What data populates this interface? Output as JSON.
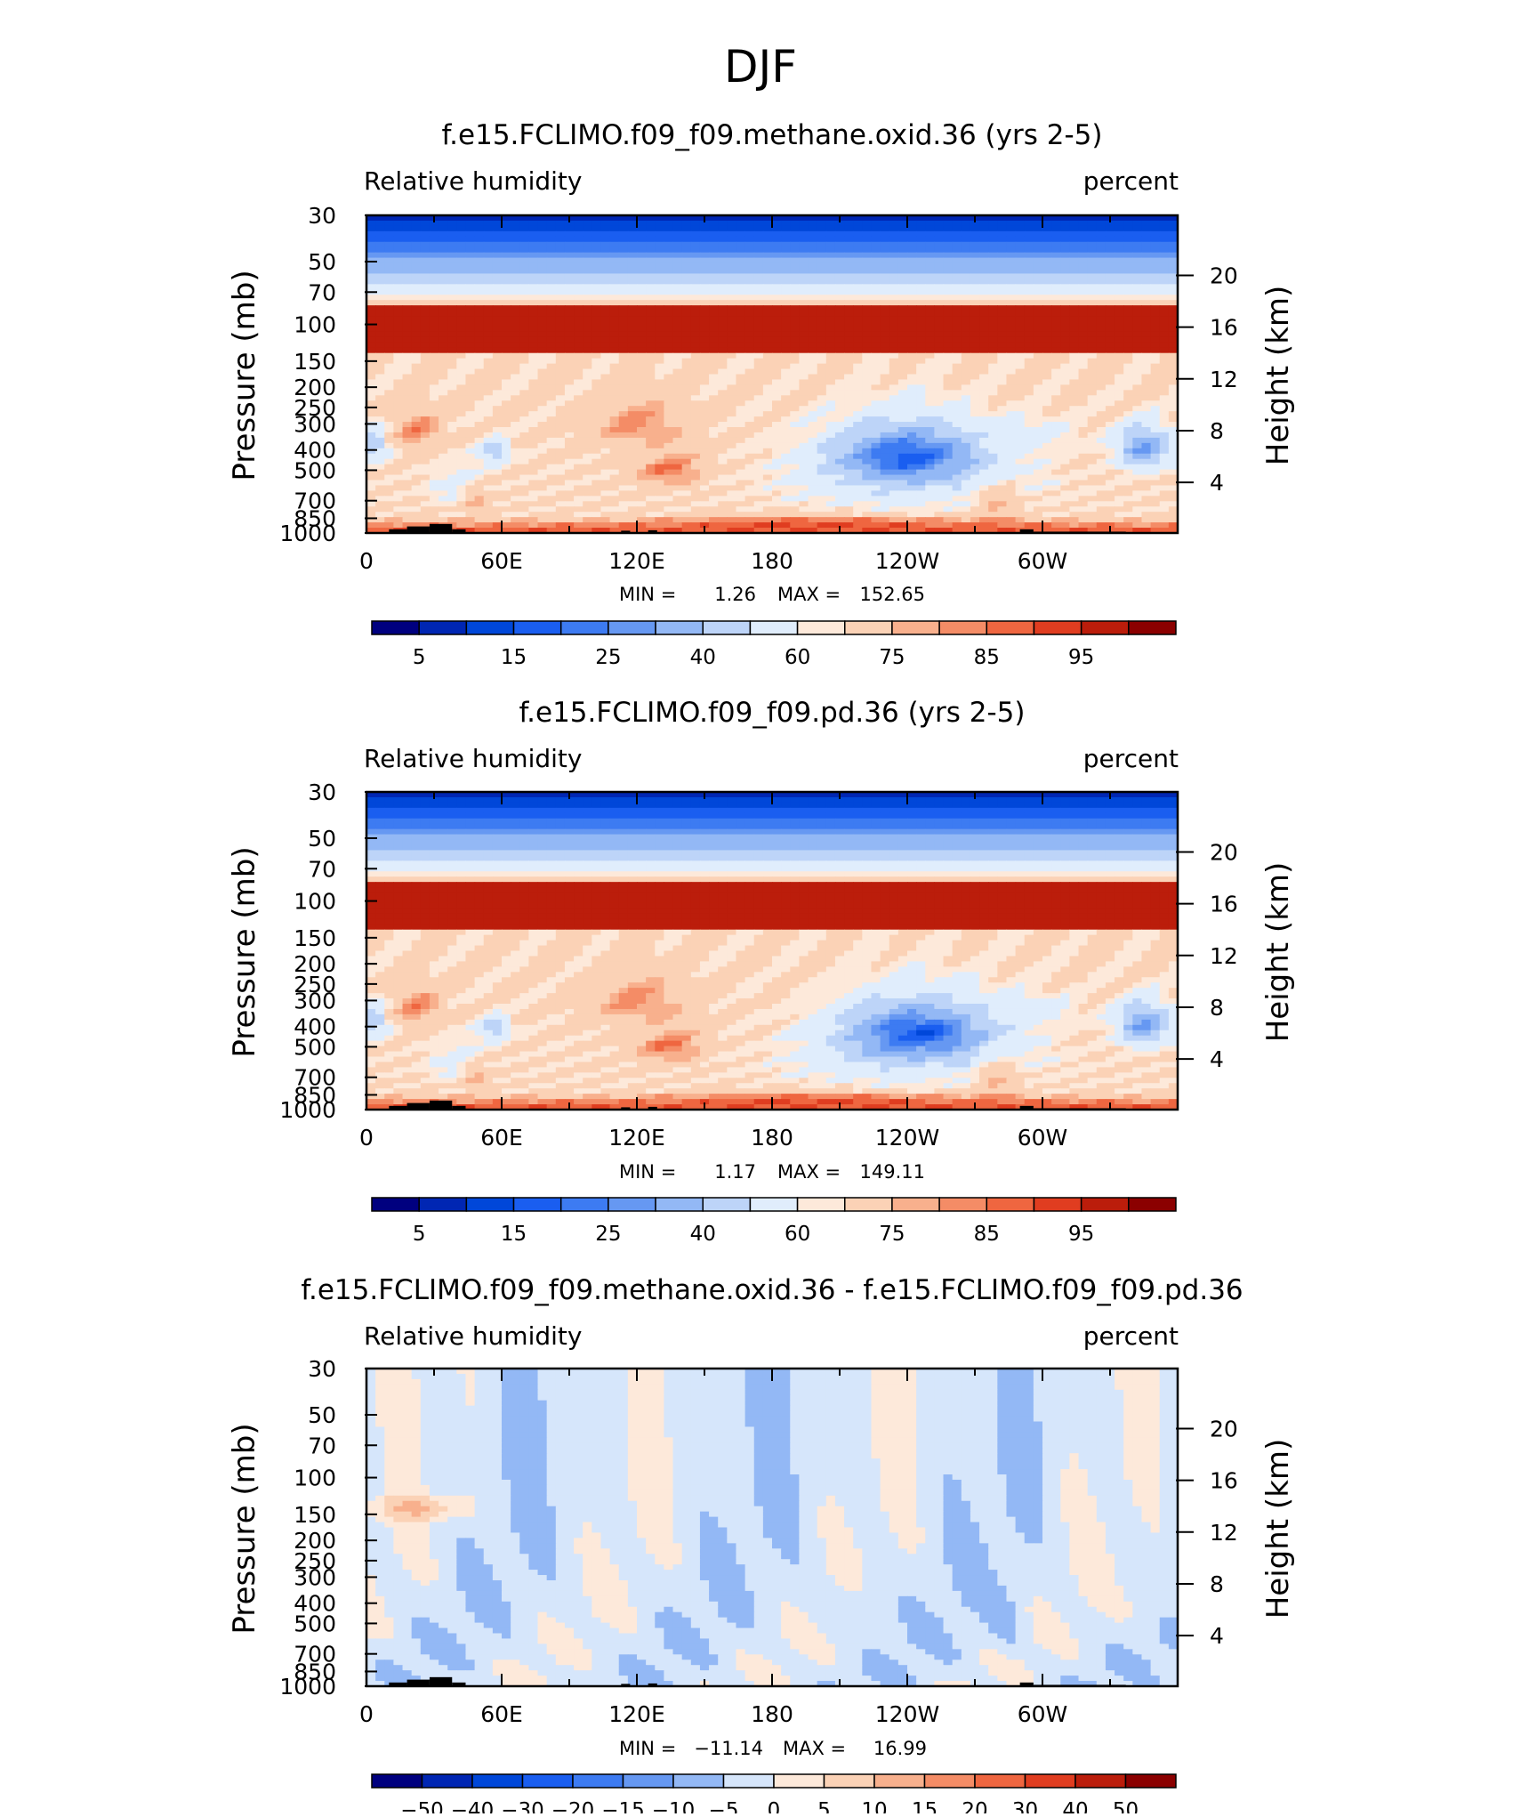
{
  "page_title": "DJF",
  "chart_data": [
    {
      "type": "heatmap",
      "title": "f.e15.FCLIMO.f09_f09.methane.oxid.36 (yrs 2-5)",
      "left_label": "Relative humidity",
      "right_label": "percent",
      "xlabel": "",
      "ylabel": "Pressure (mb)",
      "ylabel_right": "Height (km)",
      "x_ticks": [
        "0",
        "60E",
        "120E",
        "180",
        "120W",
        "60W"
      ],
      "xlim": [
        0,
        360
      ],
      "y_ticks": [
        "30",
        "50",
        "70",
        "100",
        "150",
        "200",
        "250",
        "300",
        "400",
        "500",
        "700",
        "850",
        "1000"
      ],
      "y2_ticks": [
        "20",
        "16",
        "12",
        "8",
        "4"
      ],
      "min_label": "MIN =",
      "min_value": "1.26",
      "max_label": "MAX =",
      "max_value": "152.65",
      "colorbar_labels": [
        "5",
        "15",
        "25",
        "40",
        "60",
        "75",
        "85",
        "95"
      ],
      "levels": [
        5,
        10,
        15,
        20,
        25,
        30,
        40,
        50,
        60,
        65,
        75,
        80,
        85,
        90,
        95
      ],
      "colors": [
        "#00007f",
        "#0026b3",
        "#0047d9",
        "#1a5ef0",
        "#3d7bf2",
        "#6698f2",
        "#93b8f5",
        "#bdd4f8",
        "#e0edfc",
        "#fde9da",
        "#fbd2b6",
        "#f8b08d",
        "#f48c66",
        "#ef6640",
        "#e03d20",
        "#bb1d0b",
        "#8b0000"
      ]
    },
    {
      "type": "heatmap",
      "title": "f.e15.FCLIMO.f09_f09.pd.36 (yrs 2-5)",
      "left_label": "Relative humidity",
      "right_label": "percent",
      "xlabel": "",
      "ylabel": "Pressure (mb)",
      "ylabel_right": "Height (km)",
      "x_ticks": [
        "0",
        "60E",
        "120E",
        "180",
        "120W",
        "60W"
      ],
      "xlim": [
        0,
        360
      ],
      "y_ticks": [
        "30",
        "50",
        "70",
        "100",
        "150",
        "200",
        "250",
        "300",
        "400",
        "500",
        "700",
        "850",
        "1000"
      ],
      "y2_ticks": [
        "20",
        "16",
        "12",
        "8",
        "4"
      ],
      "min_label": "MIN =",
      "min_value": "1.17",
      "max_label": "MAX =",
      "max_value": "149.11",
      "colorbar_labels": [
        "5",
        "15",
        "25",
        "40",
        "60",
        "75",
        "85",
        "95"
      ],
      "levels": [
        5,
        10,
        15,
        20,
        25,
        30,
        40,
        50,
        60,
        65,
        75,
        80,
        85,
        90,
        95
      ],
      "colors": [
        "#00007f",
        "#0026b3",
        "#0047d9",
        "#1a5ef0",
        "#3d7bf2",
        "#6698f2",
        "#93b8f5",
        "#bdd4f8",
        "#e0edfc",
        "#fde9da",
        "#fbd2b6",
        "#f8b08d",
        "#f48c66",
        "#ef6640",
        "#e03d20",
        "#bb1d0b",
        "#8b0000"
      ]
    },
    {
      "type": "heatmap",
      "title": "f.e15.FCLIMO.f09_f09.methane.oxid.36 - f.e15.FCLIMO.f09_f09.pd.36",
      "left_label": "Relative humidity",
      "right_label": "percent",
      "xlabel": "",
      "ylabel": "Pressure (mb)",
      "ylabel_right": "Height (km)",
      "x_ticks": [
        "0",
        "60E",
        "120E",
        "180",
        "120W",
        "60W"
      ],
      "xlim": [
        0,
        360
      ],
      "y_ticks": [
        "30",
        "50",
        "70",
        "100",
        "150",
        "200",
        "250",
        "300",
        "400",
        "500",
        "700",
        "850",
        "1000"
      ],
      "y2_ticks": [
        "20",
        "16",
        "12",
        "8",
        "4"
      ],
      "min_label": "MIN =",
      "min_value": "−11.14",
      "max_label": "MAX =",
      "max_value": "16.99",
      "colorbar_labels": [
        "−50",
        "−40",
        "−30",
        "−20",
        "−15",
        "−10",
        "−5",
        "0",
        "5",
        "10",
        "15",
        "20",
        "30",
        "40",
        "50"
      ],
      "levels": [
        -50,
        -40,
        -30,
        -20,
        -15,
        -10,
        -5,
        0,
        5,
        10,
        15,
        20,
        30,
        40,
        50
      ],
      "colors": [
        "#00007f",
        "#0026b3",
        "#0047d9",
        "#1a5ef0",
        "#3d7bf2",
        "#6698f2",
        "#93b8f5",
        "#d6e6fb",
        "#fde9da",
        "#fbd2b6",
        "#f8b08d",
        "#f48c66",
        "#ef6640",
        "#e03d20",
        "#bb1d0b",
        "#8b0000"
      ]
    }
  ]
}
